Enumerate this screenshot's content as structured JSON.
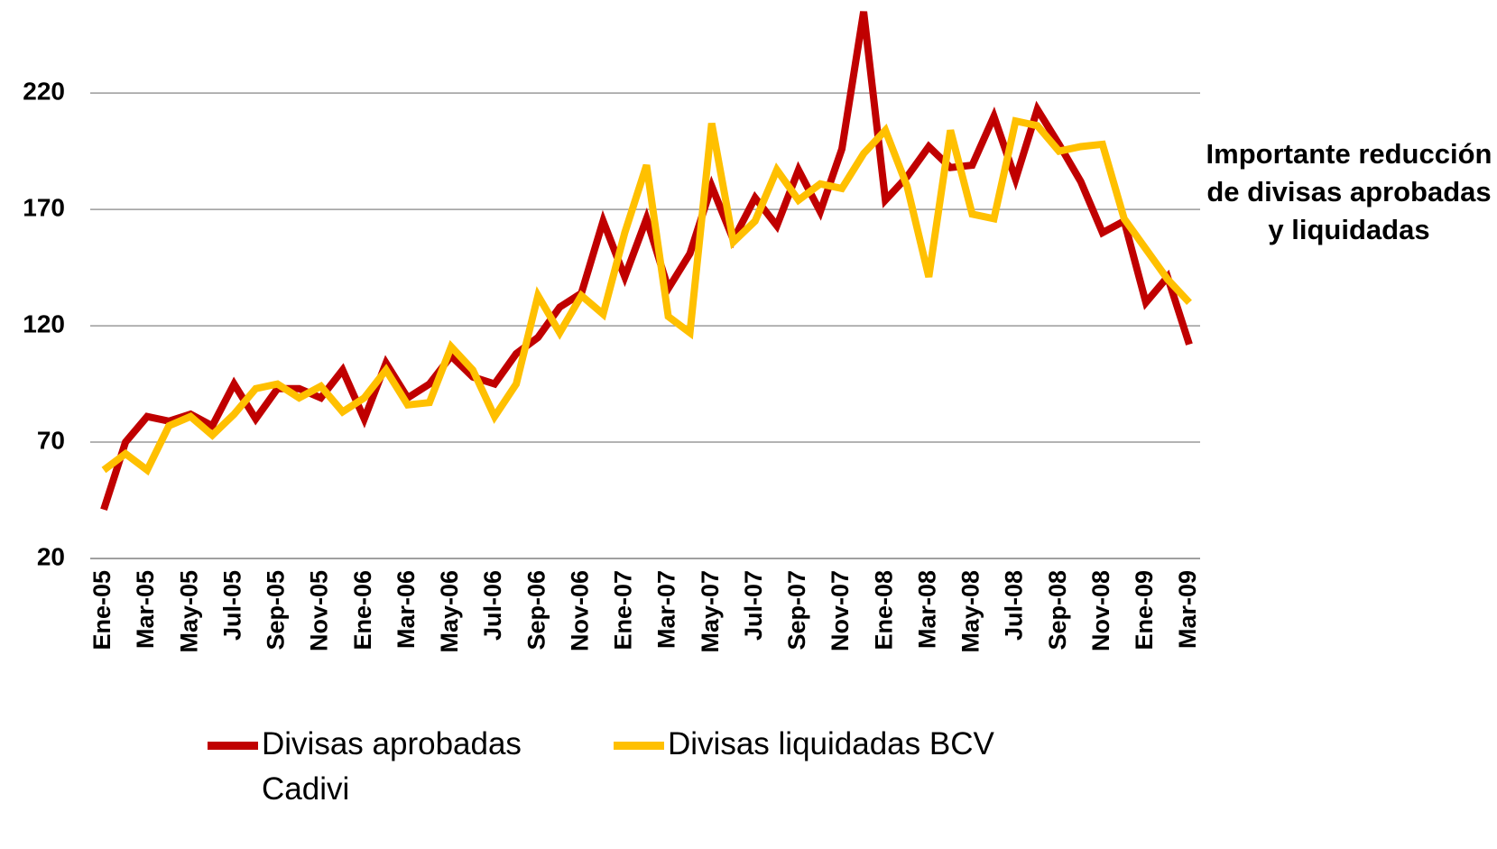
{
  "chart_data": {
    "type": "line",
    "categories": [
      "Ene-05",
      null,
      "Mar-05",
      null,
      "May-05",
      null,
      "Jul-05",
      null,
      "Sep-05",
      null,
      "Nov-05",
      null,
      "Ene-06",
      null,
      "Mar-06",
      null,
      "May-06",
      null,
      "Jul-06",
      null,
      "Sep-06",
      null,
      "Nov-06",
      null,
      "Ene-07",
      null,
      "Mar-07",
      null,
      "May-07",
      null,
      "Jul-07",
      null,
      "Sep-07",
      null,
      "Nov-07",
      null,
      "Ene-08",
      null,
      "Mar-08",
      null,
      "May-08",
      null,
      "Jul-08",
      null,
      "Sep-08",
      null,
      "Nov-08",
      null,
      "Ene-09",
      null,
      "Mar-09"
    ],
    "series": [
      {
        "name": "Divisas aprobadas Cadivi",
        "color": "#c00000",
        "values": [
          41,
          70,
          81,
          79,
          82,
          77,
          95,
          80,
          93,
          93,
          89,
          101,
          80,
          104,
          89,
          95,
          107,
          98,
          95,
          108,
          115,
          128,
          134,
          165,
          141,
          166,
          136,
          151,
          180,
          157,
          175,
          163,
          187,
          169,
          196,
          255,
          174,
          184,
          197,
          188,
          189,
          210,
          183,
          213,
          198,
          182,
          160,
          165,
          130,
          141,
          112
        ]
      },
      {
        "name": "Divisas liquidadas BCV",
        "color": "#ffc000",
        "values": [
          58,
          65,
          58,
          77,
          81,
          73,
          82,
          93,
          95,
          89,
          94,
          83,
          89,
          101,
          86,
          87,
          111,
          101,
          81,
          95,
          133,
          117,
          133,
          125,
          160,
          189,
          124,
          117,
          207,
          156,
          165,
          187,
          174,
          181,
          179,
          194,
          204,
          180,
          141,
          204,
          168,
          166,
          208,
          206,
          195,
          197,
          198,
          166,
          153,
          140,
          130
        ]
      }
    ],
    "ylim": [
      20,
      260
    ],
    "yticks": [
      20,
      70,
      120,
      170,
      220
    ],
    "grid": true,
    "annotation": "Importante reducción de divisas aprobadas y liquidadas"
  }
}
